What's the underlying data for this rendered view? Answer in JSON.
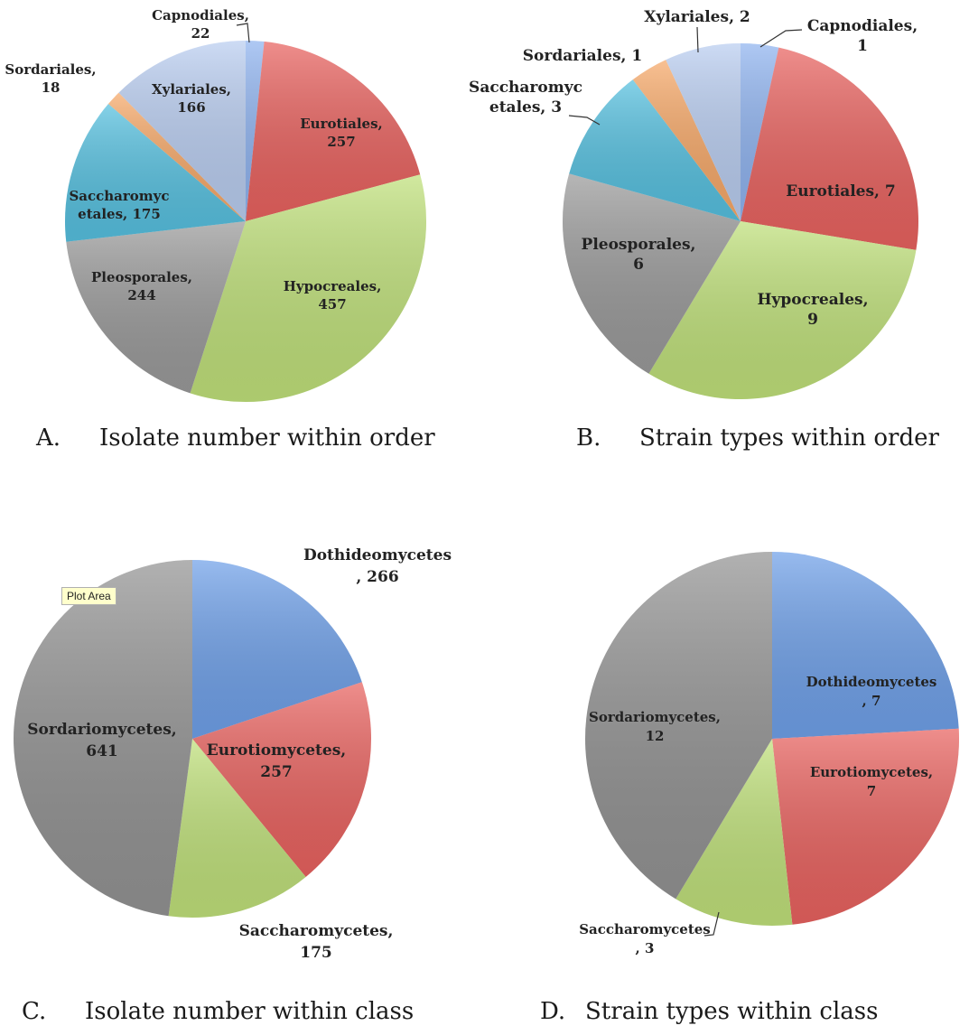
{
  "chart_data": [
    {
      "type": "pie",
      "caption_letter": "A.",
      "caption_text": "Isolate number within order",
      "slices": [
        {
          "name": "Capnodiales",
          "value": 22,
          "color": "#8fb3ef",
          "label_lines": [
            "Capnodiales,",
            "22"
          ]
        },
        {
          "name": "Eurotiales",
          "value": 257,
          "color": "#e8625f",
          "label_lines": [
            "Eurotiales,",
            "257"
          ]
        },
        {
          "name": "Hypocreales",
          "value": 457,
          "color": "#bfe07a",
          "label_lines": [
            "Hypocreales,",
            "457"
          ]
        },
        {
          "name": "Pleosporales",
          "value": 244,
          "color": "#9a9a9a",
          "label_lines": [
            "Pleosporales,",
            "244"
          ]
        },
        {
          "name": "Saccharomycetales",
          "value": 175,
          "color": "#56c0df",
          "label_lines": [
            "Saccharomyc",
            "etales, 175"
          ]
        },
        {
          "name": "Sordariales",
          "value": 18,
          "color": "#f6a868",
          "label_lines": [
            "Sordariales,",
            "18"
          ]
        },
        {
          "name": "Xylariales",
          "value": 166,
          "color": "#b9cdf0",
          "label_lines": [
            "Xylariales,",
            "166"
          ]
        }
      ]
    },
    {
      "type": "pie",
      "caption_letter": "B.",
      "caption_text": "Strain types within order",
      "slices": [
        {
          "name": "Capnodiales",
          "value": 1,
          "color": "#8fb3ef",
          "label_lines": [
            "Capnodiales,",
            "1"
          ]
        },
        {
          "name": "Eurotiales",
          "value": 7,
          "color": "#e8625f",
          "label_lines": [
            "Eurotiales, 7"
          ]
        },
        {
          "name": "Hypocreales",
          "value": 9,
          "color": "#bfe07a",
          "label_lines": [
            "Hypocreales,",
            "9"
          ]
        },
        {
          "name": "Pleosporales",
          "value": 6,
          "color": "#9a9a9a",
          "label_lines": [
            "Pleosporales,",
            "6"
          ]
        },
        {
          "name": "Saccharomycetales",
          "value": 3,
          "color": "#56c0df",
          "label_lines": [
            "Saccharomyc",
            "etales, 3"
          ]
        },
        {
          "name": "Sordariales",
          "value": 1,
          "color": "#f6a868",
          "label_lines": [
            "Sordariales, 1"
          ]
        },
        {
          "name": "Xylariales",
          "value": 2,
          "color": "#b9cdf0",
          "label_lines": [
            "Xylariales, 2"
          ]
        }
      ]
    },
    {
      "type": "pie",
      "caption_letter": "C.",
      "caption_text": "Isolate number within class",
      "tooltip": "Plot Area",
      "slices": [
        {
          "name": "Dothideomycetes",
          "value": 266,
          "color": "#6fa0e8",
          "label_lines": [
            "Dothideomycetes",
            ", 266"
          ]
        },
        {
          "name": "Eurotiomycetes",
          "value": 257,
          "color": "#e8625f",
          "label_lines": [
            "Eurotiomycetes,",
            "257"
          ]
        },
        {
          "name": "Saccharomycetes",
          "value": 175,
          "color": "#bfe07a",
          "label_lines": [
            "Saccharomycetes,",
            "175"
          ]
        },
        {
          "name": "Sordariomycetes",
          "value": 641,
          "color": "#939393",
          "label_lines": [
            "Sordariomycetes,",
            "641"
          ]
        }
      ]
    },
    {
      "type": "pie",
      "caption_letter": "D.",
      "caption_text": "Strain types within class",
      "slices": [
        {
          "name": "Dothideomycetes",
          "value": 7,
          "color": "#6fa0e8",
          "label_lines": [
            "Dothideomycetes",
            ", 7"
          ]
        },
        {
          "name": "Eurotiomycetes",
          "value": 7,
          "color": "#e8625f",
          "label_lines": [
            "Eurotiomycetes,",
            "7"
          ]
        },
        {
          "name": "Saccharomycetes",
          "value": 3,
          "color": "#bfe07a",
          "label_lines": [
            "Saccharomycetes",
            ", 3"
          ]
        },
        {
          "name": "Sordariomycetes",
          "value": 12,
          "color": "#939393",
          "label_lines": [
            "Sordariomycetes,",
            "12"
          ]
        }
      ]
    }
  ]
}
